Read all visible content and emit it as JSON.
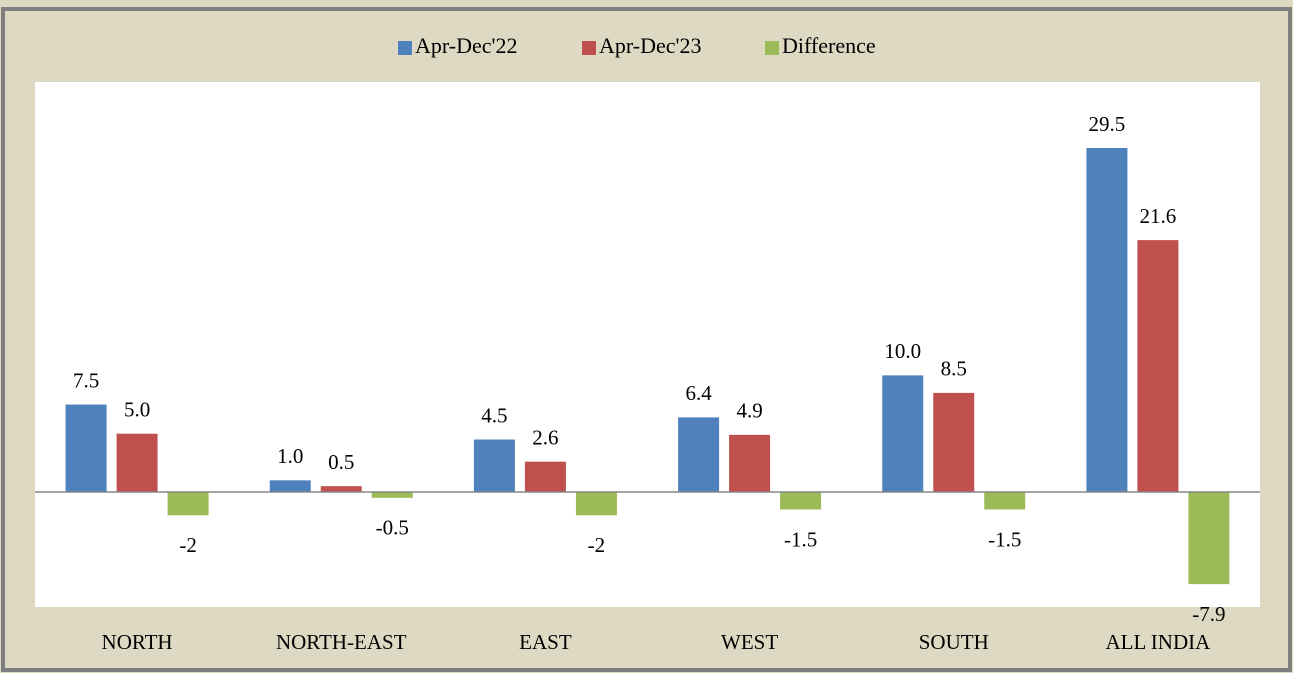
{
  "chart_data": {
    "type": "bar",
    "categories": [
      "NORTH",
      "NORTH-EAST",
      "EAST",
      "WEST",
      "SOUTH",
      "ALL INDIA"
    ],
    "series": [
      {
        "name": "Apr-Dec'22",
        "color": "#4f81bd",
        "values": [
          7.5,
          1.0,
          4.5,
          6.4,
          10.0,
          29.5
        ],
        "value_labels": [
          "7.5",
          "1.0",
          "4.5",
          "6.4",
          "10.0",
          "29.5"
        ]
      },
      {
        "name": "Apr-Dec'23",
        "color": "#c0504d",
        "values": [
          5.0,
          0.5,
          2.6,
          4.9,
          8.5,
          21.6
        ],
        "value_labels": [
          "5.0",
          "0.5",
          "2.6",
          "4.9",
          "8.5",
          "21.6"
        ]
      },
      {
        "name": "Difference",
        "color": "#9bbb59",
        "values": [
          -2,
          -0.5,
          -2,
          -1.5,
          -1.5,
          -7.9
        ]
      }
    ],
    "legend": "top"
  }
}
